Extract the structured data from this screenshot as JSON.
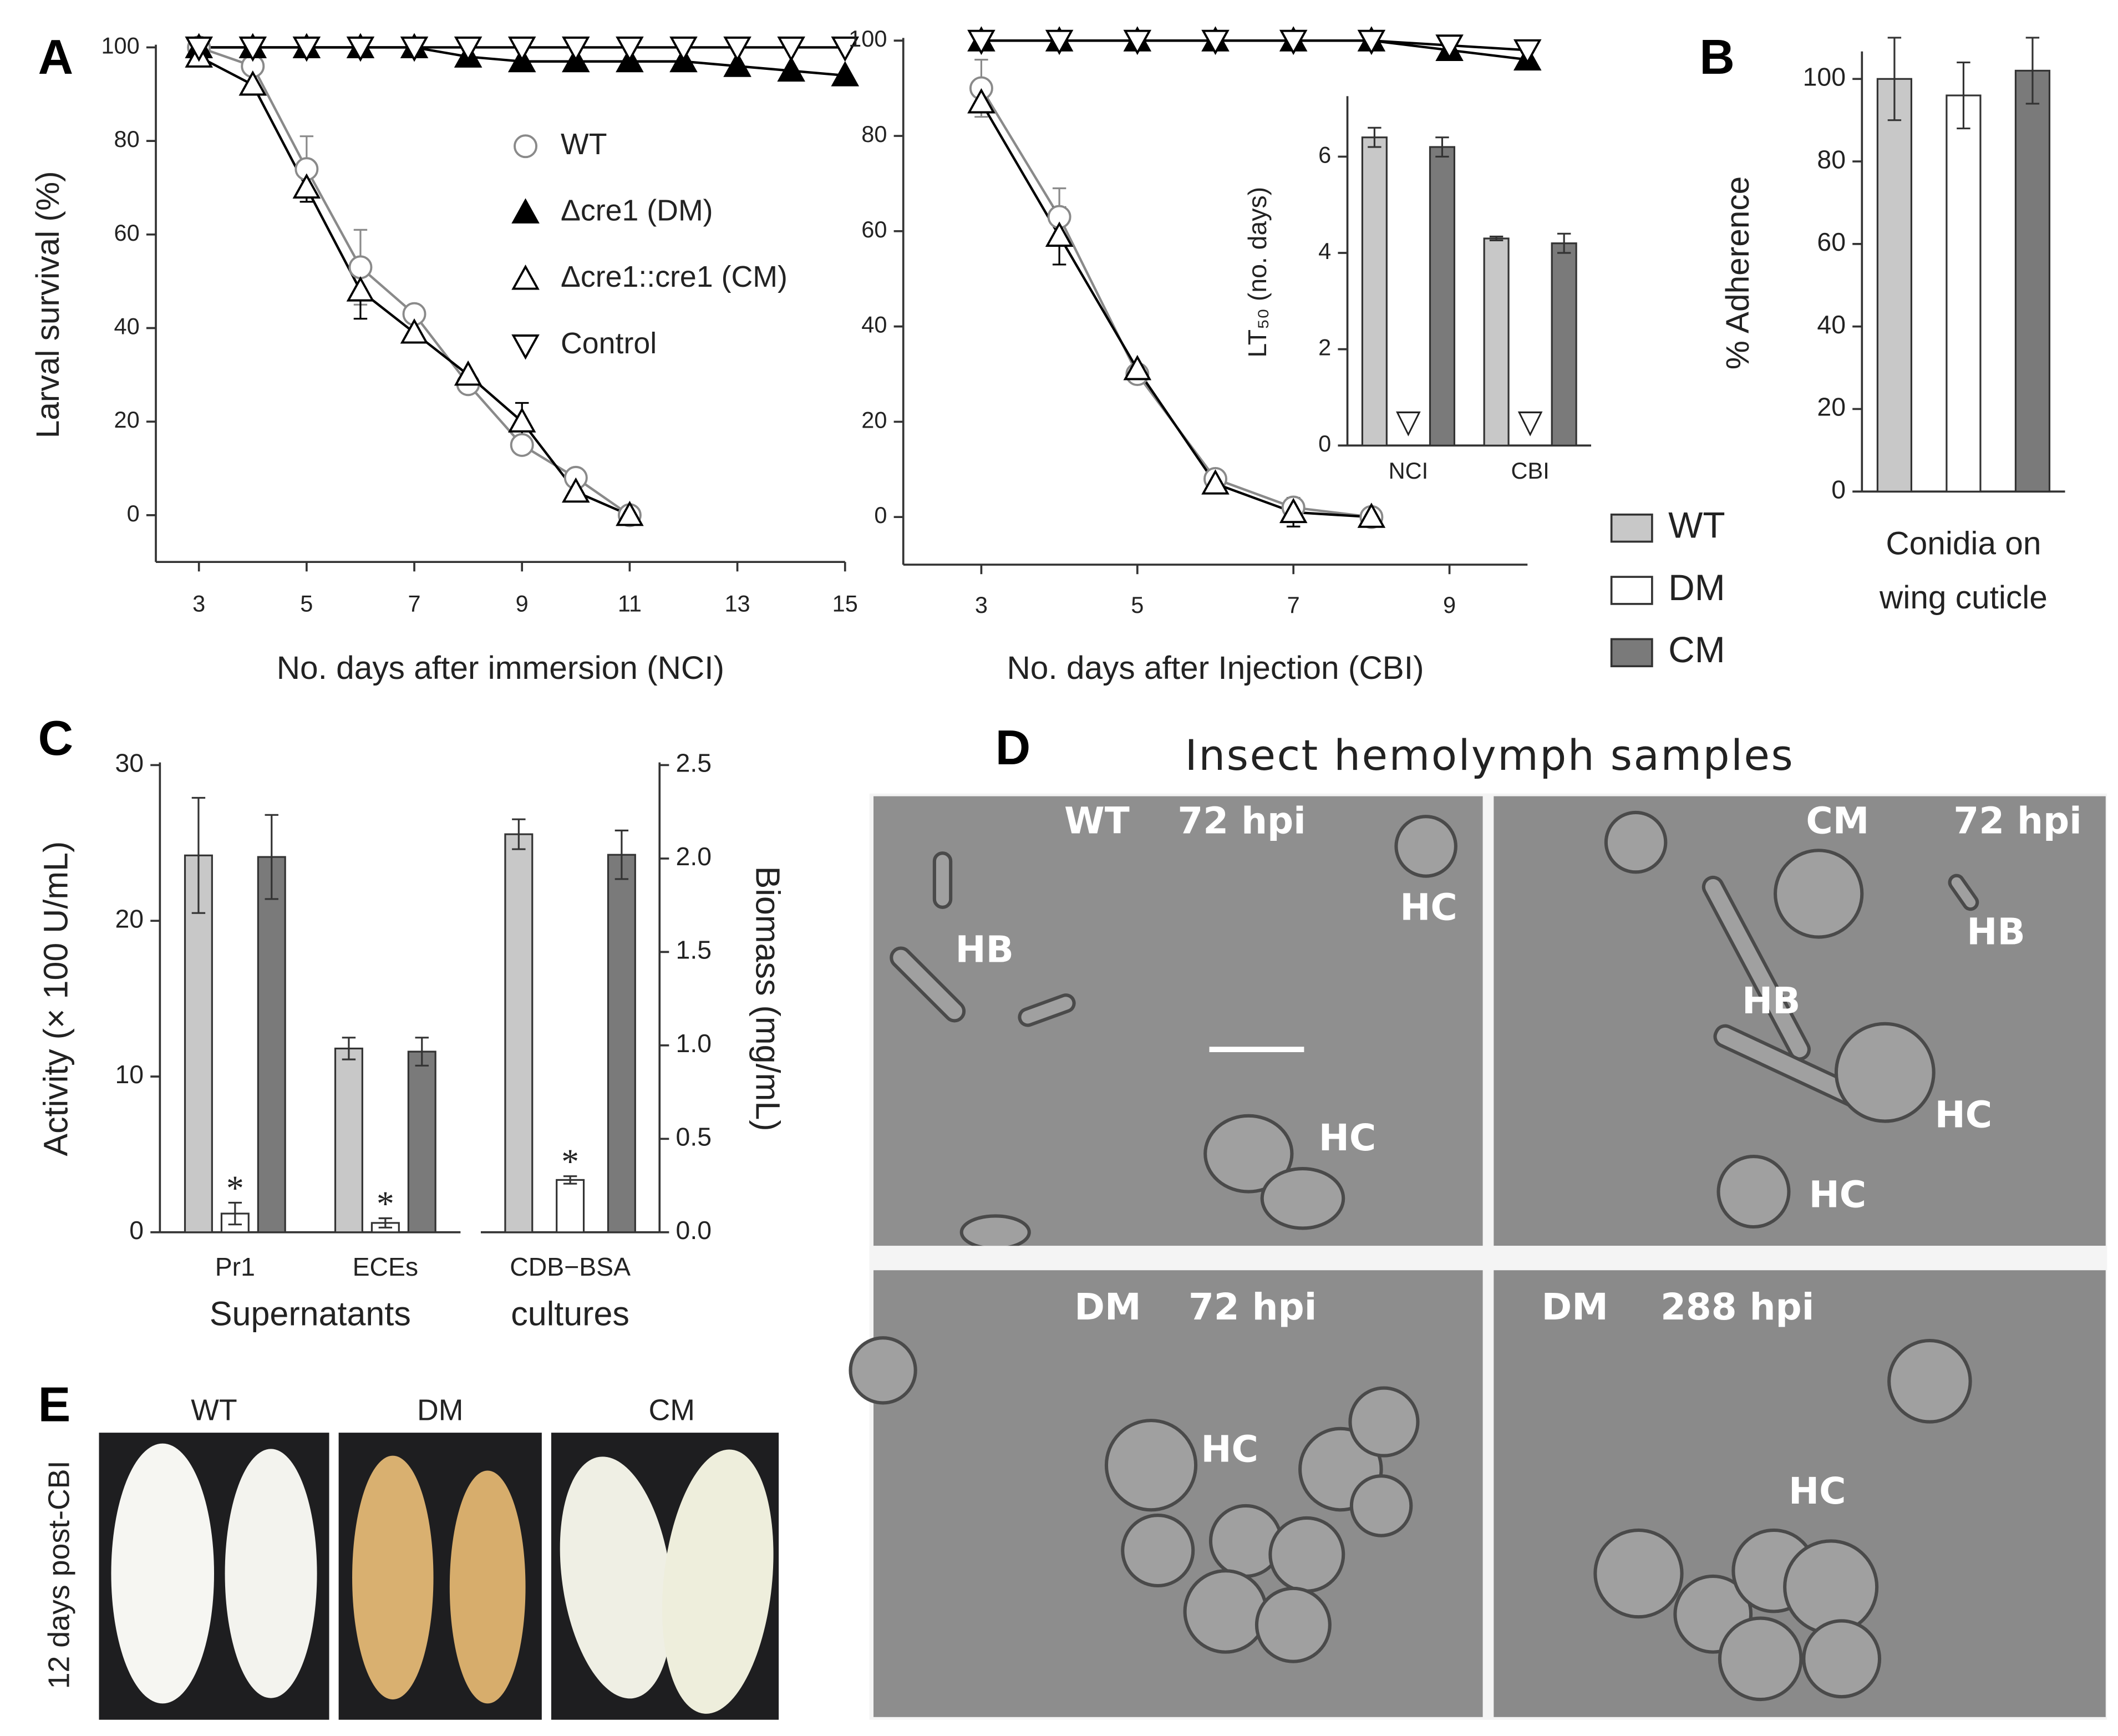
{
  "chart_data": [
    {
      "type": "line",
      "panel": "A",
      "xlabel": "No. days after immersion (NCI)",
      "ylabel": "Larval survival (%)",
      "x": [
        3,
        4,
        5,
        6,
        7,
        8,
        9,
        10,
        11,
        12,
        13,
        14,
        15
      ],
      "xlim": [
        2.2,
        15
      ],
      "xticks": [
        3,
        5,
        7,
        9,
        11,
        13,
        15
      ],
      "ylim": [
        -10,
        100
      ],
      "yticks": [
        0,
        20,
        40,
        60,
        80,
        100
      ],
      "legend": true,
      "series": [
        {
          "name": "WT",
          "color": "#8a8a8a",
          "marker": "circle",
          "values": [
            100,
            96,
            74,
            53,
            43,
            28,
            15,
            8,
            0,
            null,
            null,
            null,
            null
          ],
          "errors": [
            null,
            null,
            7,
            8,
            null,
            null,
            null,
            null,
            null,
            null,
            null,
            null,
            null
          ]
        },
        {
          "name": "Δcre1 (DM)",
          "color": "#000000",
          "marker": "triangle-up-filled",
          "values": [
            100,
            100,
            100,
            100,
            100,
            98,
            97,
            97,
            97,
            97,
            96,
            95,
            94
          ]
        },
        {
          "name": "Δcre1::cre1 (CM)",
          "color": "#000000",
          "marker": "triangle-up",
          "values": [
            98,
            92,
            70,
            48,
            39,
            30,
            20,
            5,
            0,
            null,
            null,
            null,
            null
          ],
          "errors": [
            null,
            null,
            3,
            6,
            null,
            null,
            4,
            null,
            null,
            null,
            null,
            null,
            null
          ]
        },
        {
          "name": "Control",
          "color": "#000000",
          "marker": "triangle-down",
          "values": [
            100,
            100,
            100,
            100,
            100,
            100,
            100,
            100,
            100,
            100,
            100,
            100,
            100
          ]
        }
      ]
    },
    {
      "type": "line",
      "xlabel": "No. days after Injection (CBI)",
      "x": [
        3,
        4,
        5,
        6,
        7,
        8,
        9,
        10
      ],
      "xlim": [
        2,
        10
      ],
      "xticks": [
        3,
        5,
        7,
        9
      ],
      "ylim": [
        -10,
        100
      ],
      "yticks": [
        0,
        20,
        40,
        60,
        80,
        100
      ],
      "legend": false,
      "series": [
        {
          "name": "WT",
          "color": "#8a8a8a",
          "marker": "circle",
          "values": [
            90,
            63,
            30,
            8,
            2,
            0,
            null,
            null
          ],
          "errors": [
            6,
            6,
            null,
            null,
            null,
            null,
            null,
            null
          ]
        },
        {
          "name": "Δcre1 (DM)",
          "color": "#000000",
          "marker": "triangle-up-filled",
          "values": [
            100,
            100,
            100,
            100,
            100,
            100,
            98,
            96
          ]
        },
        {
          "name": "Δcre1::cre1 (CM)",
          "color": "#000000",
          "marker": "triangle-up",
          "values": [
            87,
            59,
            31,
            7,
            1,
            0,
            null,
            null
          ],
          "errors": [
            null,
            6,
            null,
            2,
            3,
            null,
            null,
            null
          ]
        },
        {
          "name": "Control",
          "color": "#000000",
          "marker": "triangle-down",
          "values": [
            100,
            100,
            100,
            100,
            100,
            100,
            99,
            98
          ]
        }
      ]
    },
    {
      "type": "bar",
      "ylabel": "LT₅₀ (no. days)",
      "categories": [
        "NCI",
        "CBI"
      ],
      "ylim": [
        0,
        7.2
      ],
      "yticks": [
        0,
        2,
        4,
        6
      ],
      "legend": false,
      "series": [
        {
          "name": "WT",
          "color": "#c8c8c8",
          "values": [
            6.4,
            4.3
          ],
          "errors": [
            0.2,
            0.04
          ]
        },
        {
          "name": "DM",
          "color": "#ffffff",
          "values": [
            null,
            null
          ],
          "markers": [
            "▽",
            "▽"
          ]
        },
        {
          "name": "CM",
          "color": "#7a7a7a",
          "values": [
            6.2,
            4.2
          ],
          "errors": [
            0.2,
            0.2
          ]
        }
      ]
    },
    {
      "type": "bar",
      "panel": "B",
      "ylabel": "% Adherence",
      "xlabel": [
        "Conidia on",
        "wing cuticle"
      ],
      "categories": [
        null
      ],
      "ylim": [
        0,
        106
      ],
      "yticks": [
        0,
        20,
        40,
        60,
        80,
        100
      ],
      "legend": true,
      "series": [
        {
          "name": "WT",
          "color": "#c8c8c8",
          "values": [
            100
          ],
          "errors": [
            10
          ]
        },
        {
          "name": "DM",
          "color": "#ffffff",
          "values": [
            96
          ],
          "errors": [
            8
          ]
        },
        {
          "name": "CM",
          "color": "#7a7a7a",
          "values": [
            102
          ],
          "errors": [
            8
          ]
        }
      ]
    },
    {
      "type": "bar",
      "panel": "C",
      "ylabel": "Activity (× 100 U/mL)",
      "xlabel": [
        "Supernatants"
      ],
      "categories": [
        "Pr1",
        "ECEs"
      ],
      "ylim": [
        0,
        30
      ],
      "yticks": [
        0,
        10,
        20,
        30
      ],
      "legend": false,
      "series": [
        {
          "name": "WT",
          "color": "#c8c8c8",
          "values": [
            24.2,
            11.8
          ],
          "errors": [
            3.7,
            0.7
          ]
        },
        {
          "name": "DM",
          "color": "#ffffff",
          "values": [
            1.2,
            0.6
          ],
          "errors": [
            0.7,
            0.3
          ],
          "significance": [
            "*",
            "*"
          ]
        },
        {
          "name": "CM",
          "color": "#7a7a7a",
          "values": [
            24.1,
            11.6
          ],
          "errors": [
            2.7,
            0.9
          ]
        }
      ]
    },
    {
      "type": "bar",
      "y2label": "Biomass (mg/mL)",
      "xlabel": [
        "cultures"
      ],
      "categories": [
        "CDB−BSA"
      ],
      "y2lim": [
        0,
        2.5
      ],
      "y2ticks": [
        {
          "value": 0,
          "label": "0.0"
        },
        0.5,
        {
          "value": 1,
          "label": "1.0"
        },
        1.5,
        {
          "value": 2,
          "label": "2.0"
        },
        2.5
      ],
      "legend": false,
      "series": [
        {
          "name": "WT",
          "color": "#c8c8c8",
          "axis": "y2",
          "values": [
            2.13
          ],
          "errors": [
            0.08
          ]
        },
        {
          "name": "DM",
          "color": "#ffffff",
          "axis": "y2",
          "values": [
            0.28
          ],
          "errors": [
            0.02
          ],
          "significance": [
            "*"
          ]
        },
        {
          "name": "CM",
          "color": "#7a7a7a",
          "axis": "y2",
          "values": [
            2.02
          ],
          "errors": [
            0.13
          ]
        }
      ]
    }
  ],
  "panel_d": {
    "label": "D",
    "title": "Insect hemolymph samples",
    "images": [
      {
        "strain": "WT",
        "time": "72 hpi",
        "labels": [
          "HB",
          "HC",
          "HC"
        ]
      },
      {
        "strain": "CM",
        "time": "72 hpi",
        "labels": [
          "HB",
          "HB",
          "HC",
          "HC"
        ]
      },
      {
        "strain": "DM",
        "time": "72 hpi",
        "labels": [
          "HC"
        ]
      },
      {
        "strain": "DM",
        "time": "288 hpi",
        "labels": [
          "HC"
        ]
      }
    ]
  },
  "panel_e": {
    "label": "E",
    "side_label": "12 days post-CBI",
    "columns": [
      "WT",
      "DM",
      "CM"
    ]
  }
}
